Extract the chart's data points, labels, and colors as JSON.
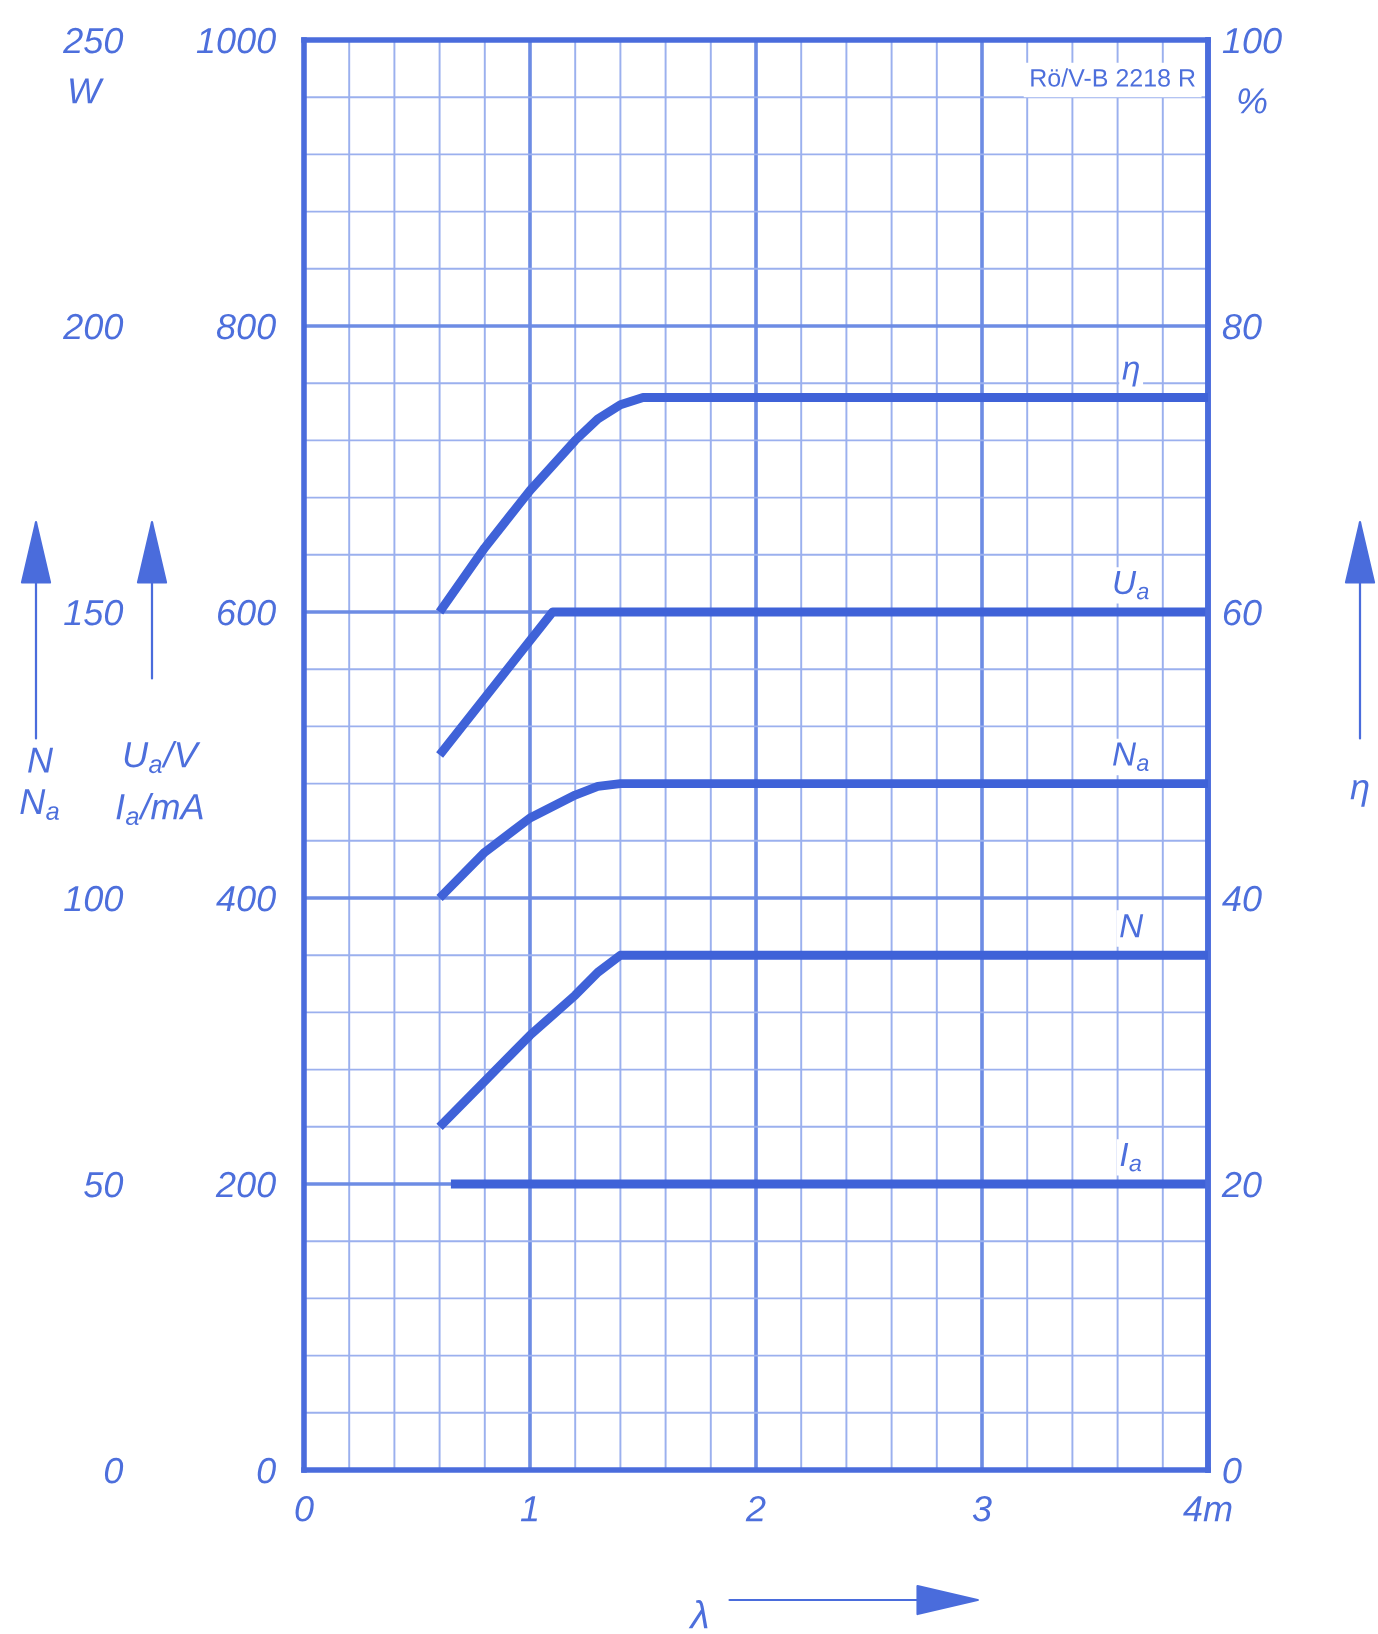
{
  "chart_data": {
    "type": "line",
    "xlabel": "λ",
    "ylabel": "U$_{a}$/V\nI$_{a}$/mA",
    "y2label": "η",
    "y3label": "N\nN$_{a}$",
    "annotations": [
      "Rö/V-B 2218 R",
      "W",
      "%"
    ],
    "xlim": [
      0,
      4
    ],
    "xticks": [
      0,
      {
        "value": 0.2,
        "label": null
      },
      {
        "value": 0.4,
        "label": null
      },
      {
        "value": 0.6,
        "label": null
      },
      {
        "value": 0.8,
        "label": null
      },
      1,
      {
        "value": 1.2,
        "label": null
      },
      {
        "value": 1.4,
        "label": null
      },
      {
        "value": 1.6,
        "label": null
      },
      {
        "value": 1.8,
        "label": null
      },
      2,
      {
        "value": 2.2,
        "label": null
      },
      {
        "value": 2.4,
        "label": null
      },
      {
        "value": 2.6,
        "label": null
      },
      {
        "value": 2.8,
        "label": null
      },
      3,
      {
        "value": 3.2,
        "label": null
      },
      {
        "value": 3.4,
        "label": null
      },
      {
        "value": 3.6,
        "label": null
      },
      {
        "value": 3.8,
        "label": null
      },
      {
        "value": 4,
        "label": "4m"
      }
    ],
    "ylim": [
      0,
      1000
    ],
    "yticks": [
      0,
      {
        "value": 40,
        "label": null
      },
      {
        "value": 80,
        "label": null
      },
      {
        "value": 120,
        "label": null
      },
      {
        "value": 160,
        "label": null
      },
      200,
      {
        "value": 240,
        "label": null
      },
      {
        "value": 280,
        "label": null
      },
      {
        "value": 320,
        "label": null
      },
      {
        "value": 360,
        "label": null
      },
      400,
      {
        "value": 440,
        "label": null
      },
      {
        "value": 480,
        "label": null
      },
      {
        "value": 520,
        "label": null
      },
      {
        "value": 560,
        "label": null
      },
      600,
      {
        "value": 640,
        "label": null
      },
      {
        "value": 680,
        "label": null
      },
      {
        "value": 720,
        "label": null
      },
      {
        "value": 760,
        "label": null
      },
      800,
      {
        "value": 840,
        "label": null
      },
      {
        "value": 880,
        "label": null
      },
      {
        "value": 920,
        "label": null
      },
      {
        "value": 960,
        "label": null
      },
      1000
    ],
    "y2lim": [
      0,
      100
    ],
    "y2ticks": [
      0,
      20,
      40,
      60,
      80,
      100
    ],
    "y3lim": [
      0,
      250
    ],
    "y3ticks": [
      0,
      50,
      100,
      150,
      200,
      250
    ],
    "grid": true,
    "line_style": "solid",
    "series": [
      {
        "name": "η",
        "color": "#3f62d8",
        "axis": "y2",
        "x": [
          0.6,
          0.8,
          1.0,
          1.2,
          1.3,
          1.4,
          1.5,
          1.6,
          4
        ],
        "values": [
          60,
          64.5,
          68.5,
          72,
          73.5,
          74.5,
          75,
          75,
          75
        ]
      },
      {
        "name": "U$_{a}$",
        "color": "#3f62d8",
        "axis": "y",
        "x": [
          0.6,
          1.1,
          4
        ],
        "values": [
          500,
          600,
          600
        ]
      },
      {
        "name": "N$_{a}$",
        "color": "#3f62d8",
        "axis": "y3",
        "x": [
          0.6,
          0.8,
          1.0,
          1.2,
          1.3,
          1.4,
          4
        ],
        "values": [
          100,
          108,
          114,
          118,
          119.5,
          120,
          120
        ]
      },
      {
        "name": "N",
        "color": "#3f62d8",
        "axis": "y3",
        "x": [
          0.6,
          0.8,
          1.0,
          1.2,
          1.3,
          1.4,
          4
        ],
        "values": [
          60,
          68,
          76,
          83,
          87,
          90,
          90
        ]
      },
      {
        "name": "I$_{a}$",
        "color": "#3f62d8",
        "axis": "y",
        "x": [
          0.65,
          4
        ],
        "values": [
          200,
          200
        ]
      }
    ]
  }
}
